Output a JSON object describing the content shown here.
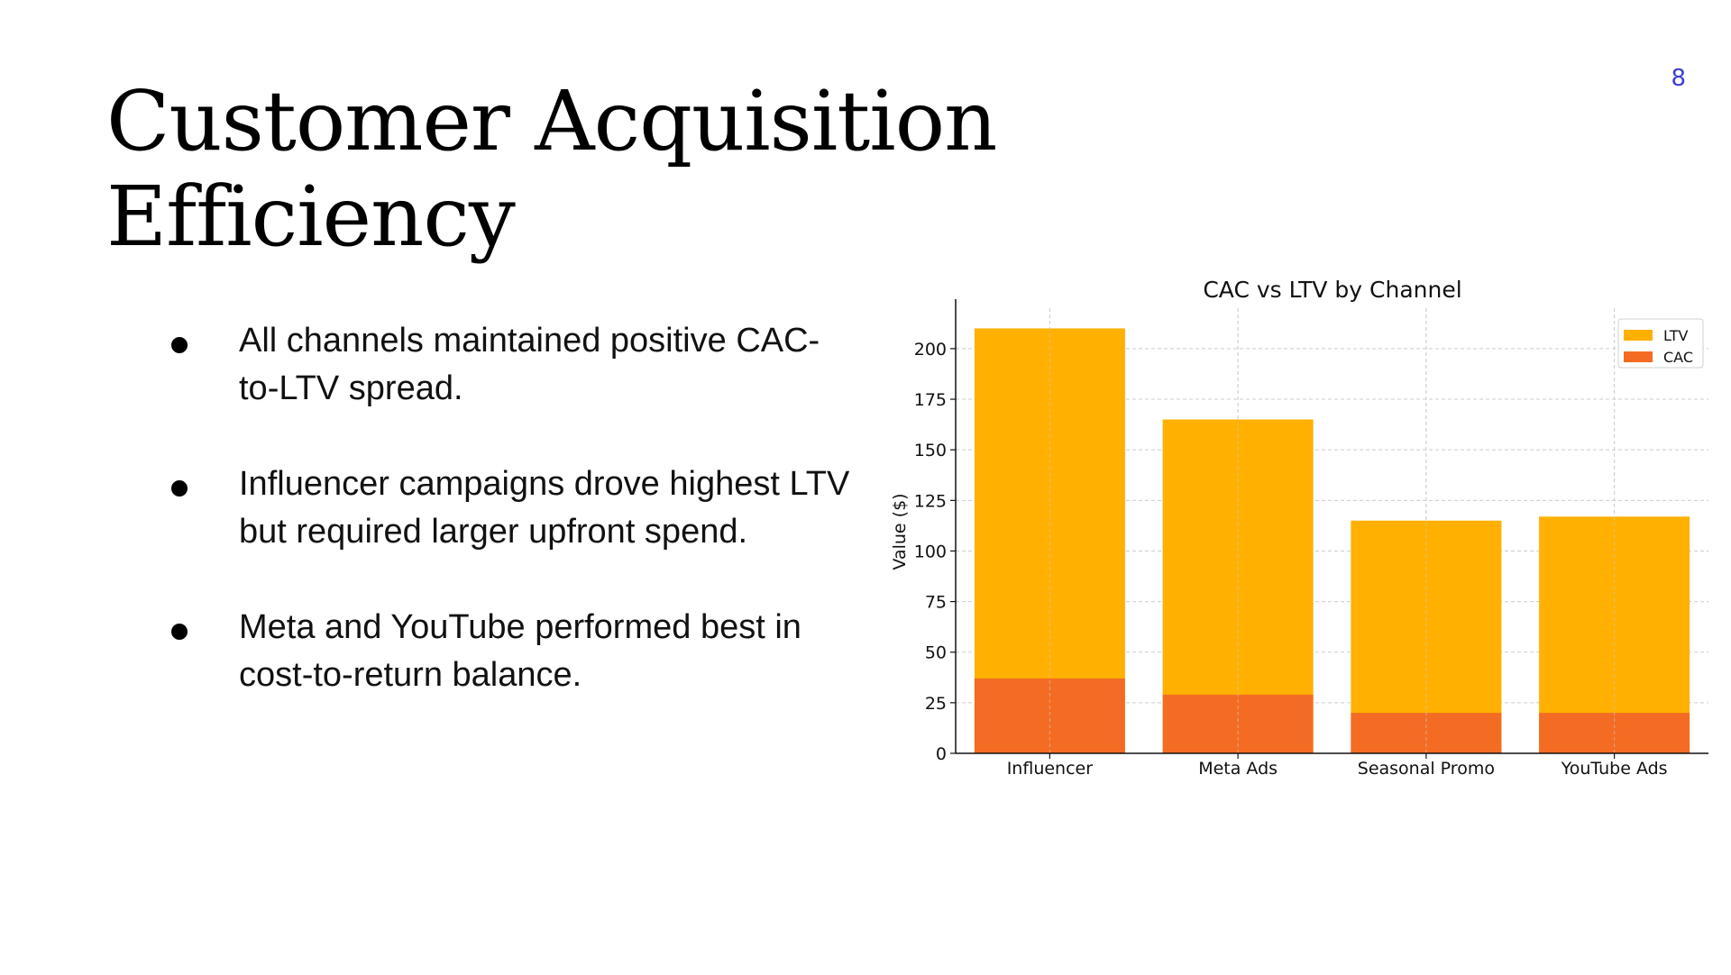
{
  "slide": {
    "title": "Customer Acquisition Efficiency",
    "page_number": "8"
  },
  "bullets": [
    "All channels maintained positive CAC-to-LTV spread.",
    "Influencer campaigns drove highest LTV but required larger upfront spend.",
    "Meta and YouTube performed best in cost-to-return balance."
  ],
  "chart_data": {
    "type": "bar",
    "stacked": false,
    "title": "CAC vs LTV by Channel",
    "xlabel": "",
    "ylabel": "Value ($)",
    "categories": [
      "Influencer",
      "Meta Ads",
      "Seasonal Promo",
      "YouTube Ads"
    ],
    "series": [
      {
        "name": "LTV",
        "values": [
          210,
          165,
          115,
          117
        ],
        "color": "#ffb000"
      },
      {
        "name": "CAC",
        "values": [
          37,
          29,
          20,
          20
        ],
        "color": "#f46c23"
      }
    ],
    "ylim": [
      0,
      220
    ],
    "yticks": [
      0,
      25,
      50,
      75,
      100,
      125,
      150,
      175,
      200
    ],
    "grid": true,
    "legend": "top-right"
  }
}
